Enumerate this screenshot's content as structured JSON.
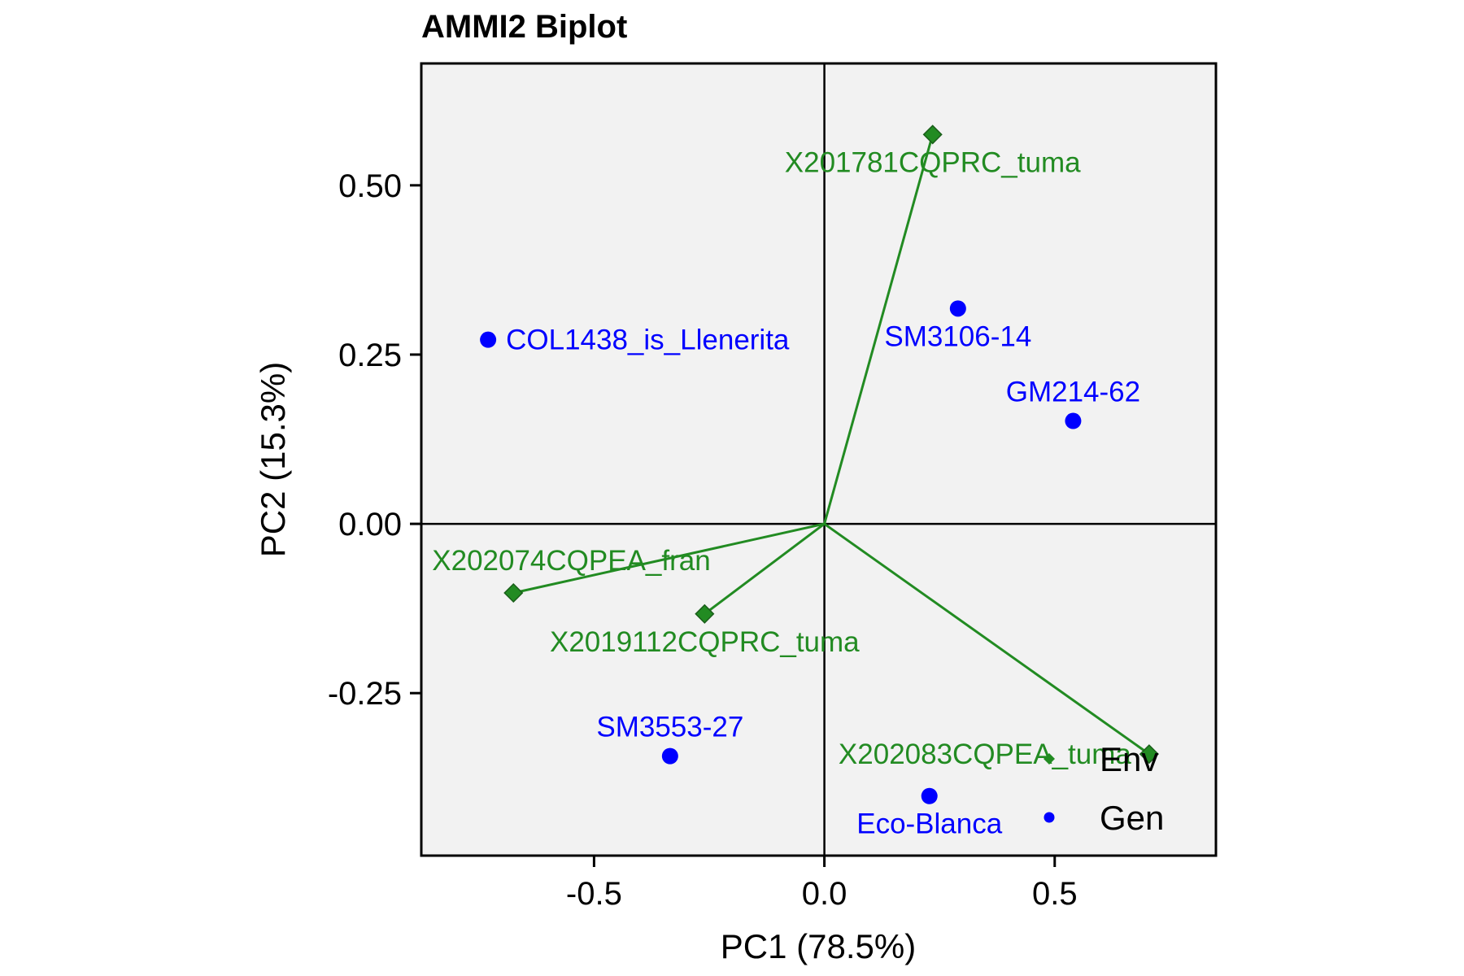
{
  "chart_data": {
    "type": "scatter",
    "title": "AMMI2 Biplot",
    "xlabel": "PC1 (78.5%)",
    "ylabel": "PC2 (15.3%)",
    "xlim": [
      -0.875,
      0.85
    ],
    "ylim": [
      -0.49,
      0.68
    ],
    "xticks": [
      -0.5,
      0.0,
      0.5
    ],
    "xtick_labels": [
      "-0.5",
      "0.0",
      "0.5"
    ],
    "yticks": [
      -0.25,
      0.0,
      0.25,
      0.5
    ],
    "ytick_labels": [
      "-0.25",
      "0.00",
      "0.25",
      "0.50"
    ],
    "grid": false,
    "reference_lines": {
      "x": 0,
      "y": 0
    },
    "legend": {
      "position": "bottom-right",
      "entries": [
        {
          "label": "Env",
          "marker": "diamond",
          "color": "#228B22"
        },
        {
          "label": "Gen",
          "marker": "circle",
          "color": "#0000FF"
        }
      ]
    },
    "colors": {
      "env": "#228B22",
      "env_marker_fill": "#228B22",
      "gen": "#0000FF",
      "panel_bg": "#F2F2F2"
    },
    "series": [
      {
        "name": "Env",
        "marker": "diamond",
        "vectors_from_origin": true,
        "points": [
          {
            "label": "X201781CQPRC_tuma",
            "x": 0.235,
            "y": 0.575,
            "label_anchor": "below"
          },
          {
            "label": "X202074CQPEA_fran",
            "x": -0.675,
            "y": -0.102,
            "label_anchor": "above-right"
          },
          {
            "label": "X2019112CQPRC_tuma",
            "x": -0.26,
            "y": -0.133,
            "label_anchor": "below"
          },
          {
            "label": "X202083CQPEA_tuma",
            "x": 0.705,
            "y": -0.34,
            "label_anchor": "left"
          }
        ]
      },
      {
        "name": "Gen",
        "marker": "circle",
        "points": [
          {
            "label": "COL1438_is_Llenerita",
            "x": -0.73,
            "y": 0.272,
            "label_anchor": "right"
          },
          {
            "label": "SM3106-14",
            "x": 0.29,
            "y": 0.318,
            "label_anchor": "below"
          },
          {
            "label": "GM214-62",
            "x": 0.54,
            "y": 0.152,
            "label_anchor": "above"
          },
          {
            "label": "SM3553-27",
            "x": -0.335,
            "y": -0.343,
            "label_anchor": "above"
          },
          {
            "label": "Eco-Blanca",
            "x": 0.228,
            "y": -0.402,
            "label_anchor": "below"
          }
        ]
      }
    ]
  }
}
